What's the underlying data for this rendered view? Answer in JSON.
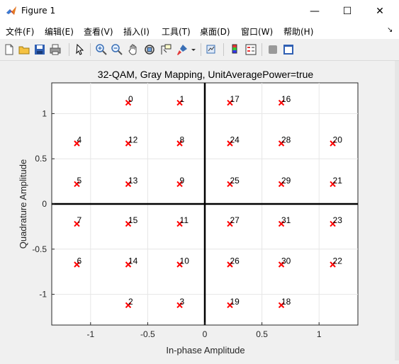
{
  "window": {
    "title": "Figure 1",
    "minimize_glyph": "—",
    "maximize_glyph": "☐",
    "close_glyph": "✕"
  },
  "menu": {
    "items": [
      "文件(F)",
      "编辑(E)",
      "查看(V)",
      "插入(I)",
      "工具(T)",
      "桌面(D)",
      "窗口(W)",
      "帮助(H)"
    ],
    "overflow_glyph": "↘"
  },
  "toolbar": {
    "icons": [
      "new-figure-icon",
      "open-file-icon",
      "save-icon",
      "print-icon",
      "pointer-icon",
      "zoom-in-icon",
      "zoom-out-icon",
      "pan-icon",
      "rotate-3d-icon",
      "data-cursor-icon",
      "brush-icon",
      "brush-dropdown-icon",
      "link-plot-icon",
      "colorbar-icon",
      "legend-icon",
      "hide-plot-tools-icon",
      "show-plot-tools-icon"
    ]
  },
  "chart_data": {
    "type": "scatter",
    "title": "32-QAM, Gray Mapping, UnitAveragePower=true",
    "xlabel": "In-phase Amplitude",
    "ylabel": "Quadrature Amplitude",
    "xlim": [
      -1.34,
      1.34
    ],
    "ylim": [
      -1.34,
      1.34
    ],
    "xticks": [
      -1,
      -0.5,
      0,
      0.5,
      1
    ],
    "yticks": [
      -1,
      -0.5,
      0,
      0.5,
      1
    ],
    "xtick_labels": [
      "-1",
      "-0.5",
      "0",
      "0.5",
      "1"
    ],
    "ytick_labels": [
      "-1",
      "-0.5",
      "0",
      "0.5",
      "1"
    ],
    "grid": true,
    "marker": "x",
    "marker_color": "#ff0000",
    "axis_lines_at_zero": true,
    "points": [
      {
        "label": "0",
        "x": -0.67,
        "y": 1.12
      },
      {
        "label": "1",
        "x": -0.22,
        "y": 1.12
      },
      {
        "label": "2",
        "x": -0.67,
        "y": -1.12
      },
      {
        "label": "3",
        "x": -0.22,
        "y": -1.12
      },
      {
        "label": "4",
        "x": -1.12,
        "y": 0.67
      },
      {
        "label": "5",
        "x": -1.12,
        "y": 0.22
      },
      {
        "label": "6",
        "x": -1.12,
        "y": -0.67
      },
      {
        "label": "7",
        "x": -1.12,
        "y": -0.22
      },
      {
        "label": "8",
        "x": -0.22,
        "y": 0.67
      },
      {
        "label": "9",
        "x": -0.22,
        "y": 0.22
      },
      {
        "label": "10",
        "x": -0.22,
        "y": -0.67
      },
      {
        "label": "11",
        "x": -0.22,
        "y": -0.22
      },
      {
        "label": "12",
        "x": -0.67,
        "y": 0.67
      },
      {
        "label": "13",
        "x": -0.67,
        "y": 0.22
      },
      {
        "label": "14",
        "x": -0.67,
        "y": -0.67
      },
      {
        "label": "15",
        "x": -0.67,
        "y": -0.22
      },
      {
        "label": "16",
        "x": 0.67,
        "y": 1.12
      },
      {
        "label": "17",
        "x": 0.22,
        "y": 1.12
      },
      {
        "label": "18",
        "x": 0.67,
        "y": -1.12
      },
      {
        "label": "19",
        "x": 0.22,
        "y": -1.12
      },
      {
        "label": "20",
        "x": 1.12,
        "y": 0.67
      },
      {
        "label": "21",
        "x": 1.12,
        "y": 0.22
      },
      {
        "label": "22",
        "x": 1.12,
        "y": -0.67
      },
      {
        "label": "23",
        "x": 1.12,
        "y": -0.22
      },
      {
        "label": "24",
        "x": 0.22,
        "y": 0.67
      },
      {
        "label": "25",
        "x": 0.22,
        "y": 0.22
      },
      {
        "label": "26",
        "x": 0.22,
        "y": -0.67
      },
      {
        "label": "27",
        "x": 0.22,
        "y": -0.22
      },
      {
        "label": "28",
        "x": 0.67,
        "y": 0.67
      },
      {
        "label": "29",
        "x": 0.67,
        "y": 0.22
      },
      {
        "label": "30",
        "x": 0.67,
        "y": -0.67
      },
      {
        "label": "31",
        "x": 0.67,
        "y": -0.22
      }
    ]
  }
}
